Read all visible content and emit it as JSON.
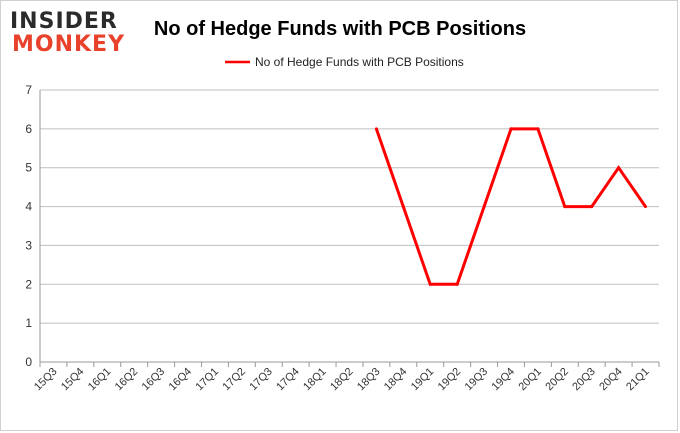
{
  "logo": {
    "line1": "INSIDER",
    "line2": "MONKEY"
  },
  "chart_data": {
    "type": "line",
    "title": "No of Hedge Funds with PCB Positions",
    "xlabel": "",
    "ylabel": "",
    "categories": [
      "15Q3",
      "15Q4",
      "16Q1",
      "16Q2",
      "16Q3",
      "16Q4",
      "17Q1",
      "17Q2",
      "17Q3",
      "17Q4",
      "18Q1",
      "18Q2",
      "18Q3",
      "18Q4",
      "19Q1",
      "19Q2",
      "19Q3",
      "19Q4",
      "20Q1",
      "20Q2",
      "20Q3",
      "20Q4",
      "21Q1"
    ],
    "series": [
      {
        "name": "No of Hedge Funds with PCB Positions",
        "color": "#ff0000",
        "values": [
          null,
          null,
          null,
          null,
          null,
          null,
          null,
          null,
          null,
          null,
          null,
          null,
          6,
          4,
          2,
          2,
          4,
          6,
          6,
          4,
          4,
          5,
          4
        ]
      }
    ],
    "ylim": [
      0,
      7
    ],
    "yticks": [
      "0",
      "1",
      "2",
      "3",
      "4",
      "5",
      "6",
      "7"
    ],
    "grid": true,
    "legend": "top-center"
  }
}
